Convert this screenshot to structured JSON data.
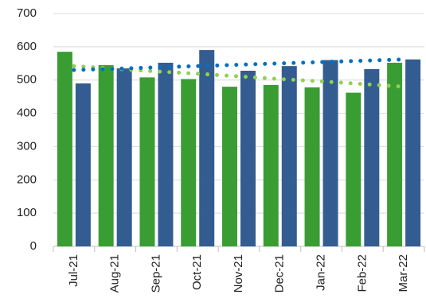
{
  "chart_data": {
    "type": "bar",
    "categories": [
      "Jul-21",
      "Aug-21",
      "Sep-21",
      "Oct-21",
      "Nov-21",
      "Dec-21",
      "Jan-22",
      "Feb-22",
      "Mar-22"
    ],
    "series": [
      {
        "color": "#3a9d34",
        "values": [
          585,
          545,
          508,
          503,
          480,
          485,
          478,
          462,
          552
        ]
      },
      {
        "color": "#335d91",
        "values": [
          490,
          535,
          552,
          590,
          528,
          542,
          560,
          533,
          562
        ]
      },
      {
        "type": "line",
        "style": "dotted",
        "color": "#92d050",
        "values": [
          542,
          534,
          526,
          519,
          511,
          503,
          496,
          488,
          480
        ]
      },
      {
        "type": "line",
        "style": "dotted",
        "color": "#0070c0",
        "values": [
          530,
          534,
          538,
          542,
          546,
          550,
          554,
          558,
          562
        ]
      }
    ],
    "ylim": [
      0,
      700
    ],
    "yticks": [
      0,
      100,
      200,
      300,
      400,
      500,
      600,
      700
    ],
    "grid": true
  }
}
